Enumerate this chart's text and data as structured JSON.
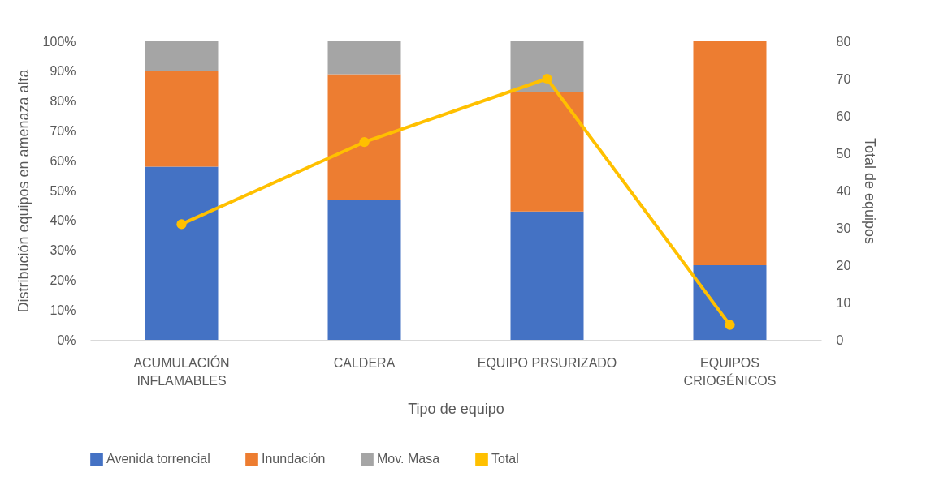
{
  "chart_data": {
    "type": "bar",
    "stacked": true,
    "xlabel": "Tipo de equipo",
    "ylabel": "Distribución equipos en amenaza alta",
    "y2label": "Total de equipos",
    "categories": [
      "ACUMULACIÓN INFLAMABLES",
      "CALDERA",
      "EQUIPO PRSURIZADO",
      "EQUIPOS CRIOGÉNICOS"
    ],
    "series": [
      {
        "name": "Avenida torrencial",
        "color": "#4472c4",
        "values": [
          58,
          47,
          43,
          25
        ]
      },
      {
        "name": "Inundación",
        "color": "#ed7d31",
        "values": [
          32,
          42,
          40,
          75
        ]
      },
      {
        "name": "Mov. Masa",
        "color": "#a5a5a5",
        "values": [
          10,
          11,
          17,
          0
        ]
      },
      {
        "name": "Total",
        "type": "line",
        "axis": "y2",
        "color": "#ffc000",
        "marker": "circle",
        "values": [
          31,
          53,
          70,
          4
        ]
      }
    ],
    "ylim": [
      0,
      100
    ],
    "yticks": [
      {
        "value": 0,
        "label": "0%"
      },
      {
        "value": 10,
        "label": "10%"
      },
      {
        "value": 20,
        "label": "20%"
      },
      {
        "value": 30,
        "label": "30%"
      },
      {
        "value": 40,
        "label": "40%"
      },
      {
        "value": 50,
        "label": "50%"
      },
      {
        "value": 60,
        "label": "60%"
      },
      {
        "value": 70,
        "label": "70%"
      },
      {
        "value": 80,
        "label": "80%"
      },
      {
        "value": 90,
        "label": "90%"
      },
      {
        "value": 100,
        "label": "100%"
      }
    ],
    "y2lim": [
      0,
      80
    ],
    "y2ticks": [
      0,
      10,
      20,
      30,
      40,
      50,
      60,
      70,
      80
    ],
    "grid": false,
    "legend": "bottom"
  }
}
